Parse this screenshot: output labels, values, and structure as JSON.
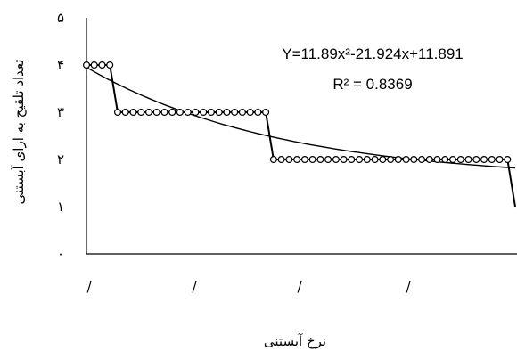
{
  "chart_data": {
    "type": "line",
    "title": "",
    "xlabel": "نرخ آبستنی",
    "ylabel": "تعداد تلقیح به ازای آبستنی",
    "ylim": [
      0,
      5
    ],
    "y_ticks": [
      "۰",
      "۱",
      "۲",
      "۳",
      "۴",
      "۵"
    ],
    "x_tick_labels": [
      "/",
      "/",
      "/",
      "/"
    ],
    "series": [
      {
        "values": [
          4,
          4,
          4,
          4,
          3,
          3,
          3,
          3,
          3,
          3,
          3,
          3,
          3,
          3,
          3,
          3,
          3,
          3,
          3,
          3,
          3,
          3,
          3,
          3,
          2,
          2,
          2,
          2,
          2,
          2,
          2,
          2,
          2,
          2,
          2,
          2,
          2,
          2,
          2,
          2,
          2,
          2,
          2,
          2,
          2,
          2,
          2,
          2,
          2,
          2,
          2,
          2,
          2,
          2,
          2,
          1
        ]
      }
    ],
    "trendline": {
      "type": "polynomial",
      "equation_label": "Y=11.89x²-21.924x+11.891",
      "r2_label": "R² = 0.8369",
      "values": [
        3.95,
        1.82
      ]
    },
    "grid": false,
    "legend": "none"
  }
}
